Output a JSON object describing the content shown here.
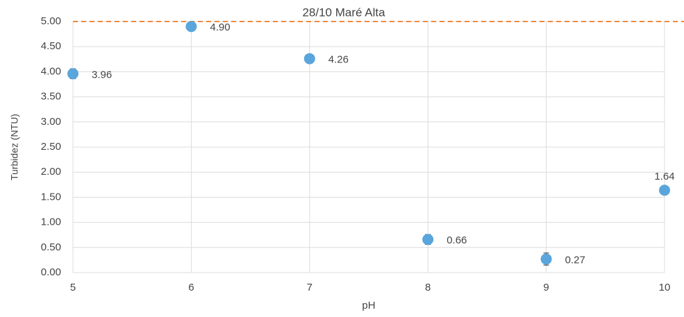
{
  "chart_data": {
    "type": "scatter",
    "title": "28/10 Maré Alta",
    "x_label": "pH",
    "y_label": "Turbidez (NTU)",
    "x": [
      5,
      6,
      7,
      8,
      9,
      10
    ],
    "values": [
      3.96,
      4.9,
      4.26,
      0.66,
      0.27,
      1.64
    ],
    "value_labels": [
      "3.96",
      "4.90",
      "4.26",
      "0.66",
      "0.27",
      "1.64"
    ],
    "errors": [
      0.1,
      0.05,
      0.07,
      0.1,
      0.12,
      0.03
    ],
    "color": "#5aa5dc",
    "reference_line": {
      "value": 5,
      "color": "#f08a3c"
    },
    "xlim": [
      5,
      10
    ],
    "xticks": [
      5,
      6,
      7,
      8,
      9,
      10
    ],
    "ylim": [
      0,
      5
    ],
    "yticks": [
      {
        "value": 0,
        "label": "0.00"
      },
      {
        "value": 0.5,
        "label": "0.50"
      },
      {
        "value": 1,
        "label": "1.00"
      },
      {
        "value": 1.5,
        "label": "1.50"
      },
      {
        "value": 2,
        "label": "2.00"
      },
      {
        "value": 2.5,
        "label": "2.50"
      },
      {
        "value": 3,
        "label": "3.00"
      },
      {
        "value": 3.5,
        "label": "3.50"
      },
      {
        "value": 4,
        "label": "4.00"
      },
      {
        "value": 4.5,
        "label": "4.50"
      },
      {
        "value": 5,
        "label": "5.00"
      }
    ],
    "grid": true
  }
}
